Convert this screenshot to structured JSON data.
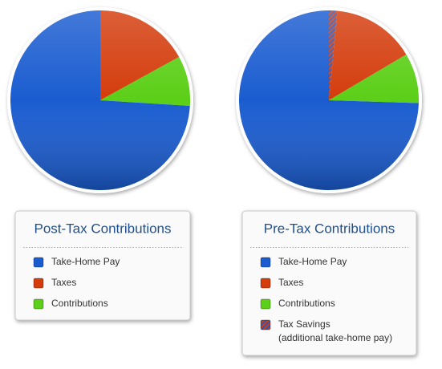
{
  "chart_data": [
    {
      "type": "pie",
      "title": "Post-Tax Contributions",
      "categories": [
        "Take-Home Pay",
        "Taxes",
        "Contributions"
      ],
      "values": [
        74,
        17,
        9
      ],
      "colors": [
        "#1a5cd0",
        "#d43c0c",
        "#5ccf18"
      ]
    },
    {
      "type": "pie",
      "title": "Pre-Tax Contributions",
      "categories": [
        "Take-Home Pay",
        "Taxes",
        "Contributions",
        "Tax Savings"
      ],
      "values": [
        74.5,
        15,
        9,
        1.5
      ],
      "colors": [
        "#1a5cd0",
        "#d43c0c",
        "#5ccf18",
        "#7a4a86"
      ],
      "striped": [
        false,
        false,
        false,
        true
      ],
      "annotation": "(additional take-home pay)"
    }
  ]
}
